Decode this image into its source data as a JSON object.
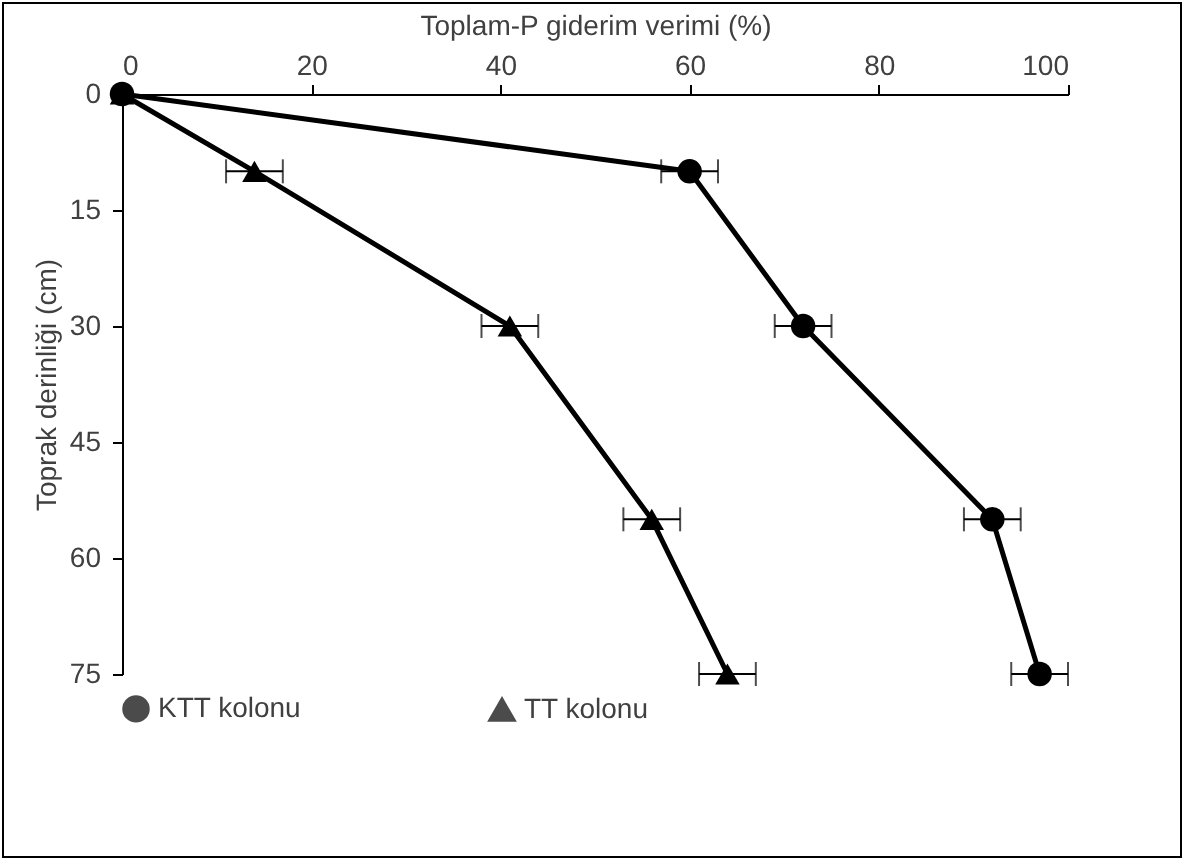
{
  "chart_data": {
    "type": "line",
    "xlabel": "Toplam-P giderim verimi (%)",
    "ylabel": "Toprak derinliği (cm)",
    "xlim": [
      0,
      100
    ],
    "xticks": [
      0,
      20,
      40,
      60,
      80,
      100
    ],
    "ylim": [
      75,
      0
    ],
    "yticks": [
      0,
      15,
      30,
      45,
      60,
      75
    ],
    "grid": false,
    "legend": "bottom",
    "series": [
      {
        "name": "KTT kolonu",
        "color": "#000000",
        "marker": "circle",
        "x": [
          0,
          60,
          72,
          92,
          97
        ],
        "values": [
          0,
          10,
          30,
          55,
          75
        ],
        "xerrors": [
          null,
          3,
          3,
          3,
          3
        ]
      },
      {
        "name": "TT kolonu",
        "color": "#000000",
        "marker": "triangle",
        "x": [
          0,
          14,
          41,
          56,
          64
        ],
        "values": [
          0,
          10,
          30,
          55,
          75
        ],
        "xerrors": [
          null,
          3,
          3,
          3,
          3
        ]
      }
    ]
  }
}
